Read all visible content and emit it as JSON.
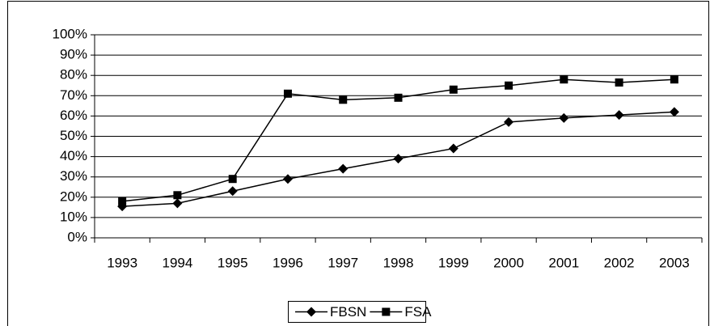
{
  "chart_data": {
    "type": "line",
    "categories": [
      "1993",
      "1994",
      "1995",
      "1996",
      "1997",
      "1998",
      "1999",
      "2000",
      "2001",
      "2002",
      "2003"
    ],
    "series": [
      {
        "name": "FBSN",
        "color": "#000000",
        "marker": "diamond",
        "values": [
          15.5,
          17,
          23,
          29,
          34,
          39,
          44,
          57,
          59,
          60.5,
          62
        ]
      },
      {
        "name": "FSA",
        "color": "#000000",
        "marker": "square",
        "values": [
          18,
          21,
          29,
          71,
          68,
          69,
          73,
          75,
          78,
          76.5,
          78
        ]
      }
    ],
    "ylim": [
      0,
      100
    ],
    "yticks": [
      {
        "value": 0,
        "label": "0%"
      },
      {
        "value": 10,
        "label": "10%"
      },
      {
        "value": 20,
        "label": "20%"
      },
      {
        "value": 30,
        "label": "30%"
      },
      {
        "value": 40,
        "label": "40%"
      },
      {
        "value": 50,
        "label": "50%"
      },
      {
        "value": 60,
        "label": "60%"
      },
      {
        "value": 70,
        "label": "70%"
      },
      {
        "value": 80,
        "label": "80%"
      },
      {
        "value": 90,
        "label": "90%"
      },
      {
        "value": 100,
        "label": "100%"
      }
    ],
    "grid": true,
    "legend": "bottom"
  }
}
